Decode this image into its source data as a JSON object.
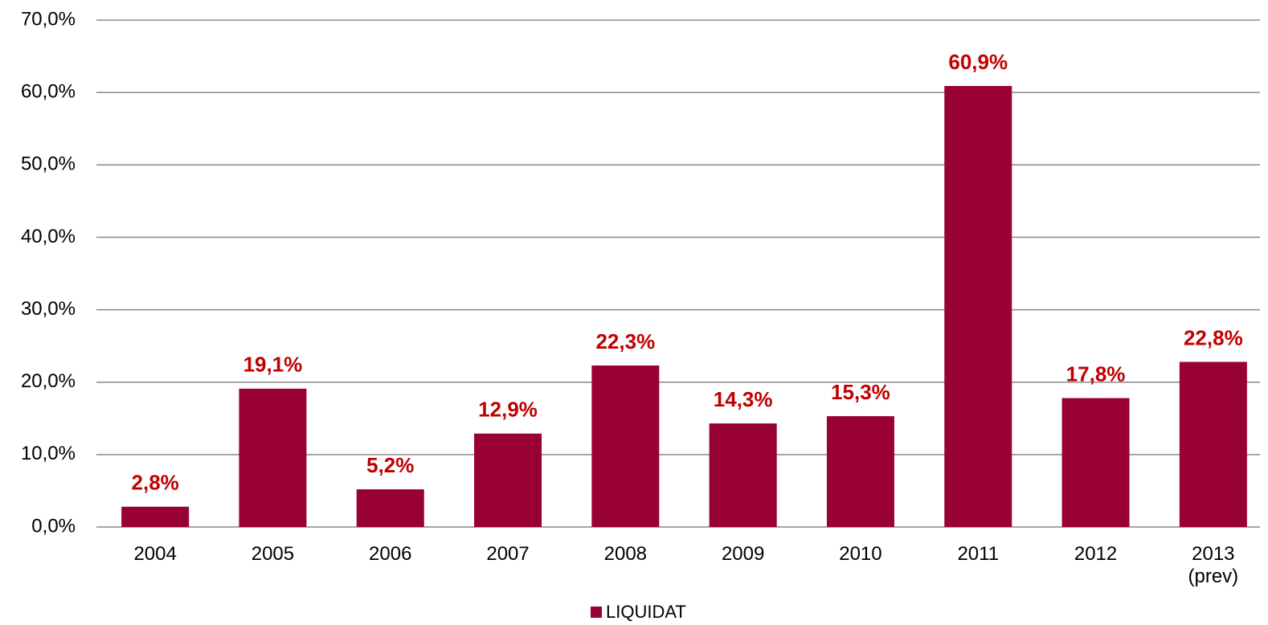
{
  "chart_data": {
    "type": "bar",
    "categories": [
      "2004",
      "2005",
      "2006",
      "2007",
      "2008",
      "2009",
      "2010",
      "2011",
      "2012",
      "2013 (prev)"
    ],
    "series": [
      {
        "name": "LIQUIDAT",
        "color": "#990033",
        "values": [
          2.8,
          19.1,
          5.2,
          12.9,
          22.3,
          14.3,
          15.3,
          60.9,
          17.8,
          22.8
        ],
        "value_labels": [
          "2,8%",
          "19,1%",
          "5,2%",
          "12,9%",
          "22,3%",
          "14,3%",
          "15,3%",
          "60,9%",
          "17,8%",
          "22,8%"
        ]
      }
    ],
    "ylim": [
      0,
      70
    ],
    "yticks": [
      {
        "value": 0,
        "label": "0,0%"
      },
      {
        "value": 10,
        "label": "10,0%"
      },
      {
        "value": 20,
        "label": "20,0%"
      },
      {
        "value": 30,
        "label": "30,0%"
      },
      {
        "value": 40,
        "label": "40,0%"
      },
      {
        "value": 50,
        "label": "50,0%"
      },
      {
        "value": 60,
        "label": "60,0%"
      },
      {
        "value": 70,
        "label": "70,0%"
      }
    ],
    "grid": true,
    "legend": "bottom"
  }
}
